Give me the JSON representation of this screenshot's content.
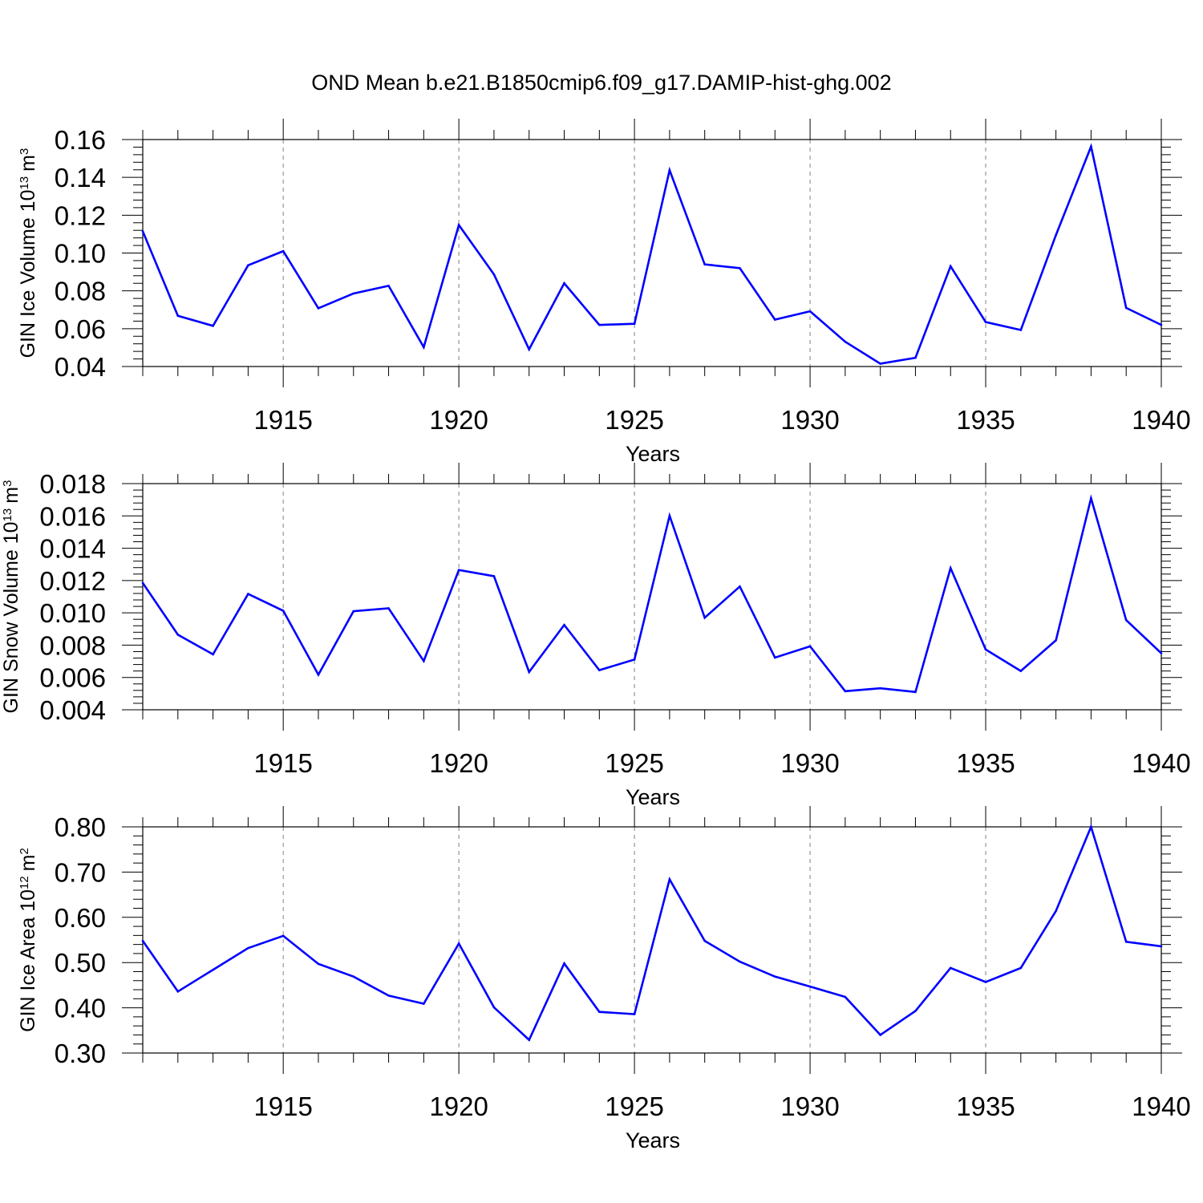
{
  "title": "OND Mean b.e21.B1850cmip6.f09_g17.DAMIP-hist-ghg.002",
  "colors": {
    "line": "#0000ff",
    "axis": "#000000",
    "grid": "#808080",
    "background": "#ffffff"
  },
  "chart_data": [
    {
      "type": "line",
      "ylabel": {
        "text": "GIN Ice Volume 10",
        "sup": "13",
        "unit": "m",
        "unit_sup": "3"
      },
      "xlabel": "Years",
      "xlim": [
        1911,
        1940
      ],
      "ylim": [
        0.04,
        0.16
      ],
      "yticks": [
        0.04,
        0.06,
        0.08,
        0.1,
        0.12,
        0.14,
        0.16
      ],
      "ytick_labels": [
        "0.04",
        "0.06",
        "0.08",
        "0.10",
        "0.12",
        "0.14",
        "0.16"
      ],
      "xticks": [
        1915,
        1920,
        1925,
        1930,
        1935,
        1940
      ],
      "xtick_labels": [
        "1915",
        "1920",
        "1925",
        "1930",
        "1935",
        "1940"
      ],
      "grid": "vertical dashed at major x ticks",
      "x": [
        1911,
        1912,
        1913,
        1914,
        1915,
        1916,
        1917,
        1918,
        1919,
        1920,
        1921,
        1922,
        1923,
        1924,
        1925,
        1926,
        1927,
        1928,
        1929,
        1930,
        1931,
        1932,
        1933,
        1934,
        1935,
        1936,
        1937,
        1938,
        1939,
        1940
      ],
      "series": [
        {
          "name": "GIN Ice Volume",
          "values": [
            0.1115,
            0.0668,
            0.0615,
            0.0935,
            0.101,
            0.0708,
            0.0786,
            0.0827,
            0.0502,
            0.1148,
            0.0887,
            0.0491,
            0.084,
            0.062,
            0.0626,
            0.1438,
            0.094,
            0.092,
            0.0648,
            0.0692,
            0.0531,
            0.0415,
            0.0446,
            0.093,
            0.0635,
            0.0593,
            0.1095,
            0.1563,
            0.071,
            0.062
          ]
        }
      ]
    },
    {
      "type": "line",
      "ylabel": {
        "text": "GIN Snow Volume 10",
        "sup": "13",
        "unit": "m",
        "unit_sup": "3"
      },
      "xlabel": "Years",
      "xlim": [
        1911,
        1940
      ],
      "ylim": [
        0.004,
        0.018
      ],
      "yticks": [
        0.004,
        0.006,
        0.008,
        0.01,
        0.012,
        0.014,
        0.016,
        0.018
      ],
      "ytick_labels": [
        "0.004",
        "0.006",
        "0.008",
        "0.010",
        "0.012",
        "0.014",
        "0.016",
        "0.018"
      ],
      "xticks": [
        1915,
        1920,
        1925,
        1930,
        1935,
        1940
      ],
      "xtick_labels": [
        "1915",
        "1920",
        "1925",
        "1930",
        "1935",
        "1940"
      ],
      "grid": "vertical dashed at major x ticks",
      "x": [
        1911,
        1912,
        1913,
        1914,
        1915,
        1916,
        1917,
        1918,
        1919,
        1920,
        1921,
        1922,
        1923,
        1924,
        1925,
        1926,
        1927,
        1928,
        1929,
        1930,
        1931,
        1932,
        1933,
        1934,
        1935,
        1936,
        1937,
        1938,
        1939,
        1940
      ],
      "series": [
        {
          "name": "GIN Snow Volume",
          "values": [
            0.01185,
            0.00865,
            0.00743,
            0.01117,
            0.01013,
            0.00617,
            0.0101,
            0.01028,
            0.00702,
            0.01265,
            0.01227,
            0.00634,
            0.00925,
            0.00645,
            0.00711,
            0.01601,
            0.0097,
            0.01163,
            0.00723,
            0.00793,
            0.00515,
            0.00533,
            0.0051,
            0.01277,
            0.00773,
            0.0064,
            0.0083,
            0.01709,
            0.00955,
            0.0075
          ]
        }
      ]
    },
    {
      "type": "line",
      "ylabel": {
        "text": "GIN Ice Area 10",
        "sup": "12",
        "unit": "m",
        "unit_sup": "2"
      },
      "xlabel": "Years",
      "xlim": [
        1911,
        1940
      ],
      "ylim": [
        0.3,
        0.8
      ],
      "yticks": [
        0.3,
        0.4,
        0.5,
        0.6,
        0.7,
        0.8
      ],
      "ytick_labels": [
        "0.30",
        "0.40",
        "0.50",
        "0.60",
        "0.70",
        "0.80"
      ],
      "xticks": [
        1915,
        1920,
        1925,
        1930,
        1935,
        1940
      ],
      "xtick_labels": [
        "1915",
        "1920",
        "1925",
        "1930",
        "1935",
        "1940"
      ],
      "grid": "vertical dashed at major x ticks",
      "x": [
        1911,
        1912,
        1913,
        1914,
        1915,
        1916,
        1917,
        1918,
        1919,
        1920,
        1921,
        1922,
        1923,
        1924,
        1925,
        1926,
        1927,
        1928,
        1929,
        1930,
        1931,
        1932,
        1933,
        1934,
        1935,
        1936,
        1937,
        1938,
        1939,
        1940
      ],
      "series": [
        {
          "name": "GIN Ice Area",
          "values": [
            0.548,
            0.436,
            0.484,
            0.532,
            0.559,
            0.497,
            0.469,
            0.427,
            0.409,
            0.542,
            0.401,
            0.329,
            0.498,
            0.391,
            0.386,
            0.684,
            0.548,
            0.502,
            0.469,
            0.447,
            0.424,
            0.34,
            0.393,
            0.488,
            0.457,
            0.488,
            0.614,
            0.8,
            0.546,
            0.536
          ]
        }
      ]
    }
  ]
}
